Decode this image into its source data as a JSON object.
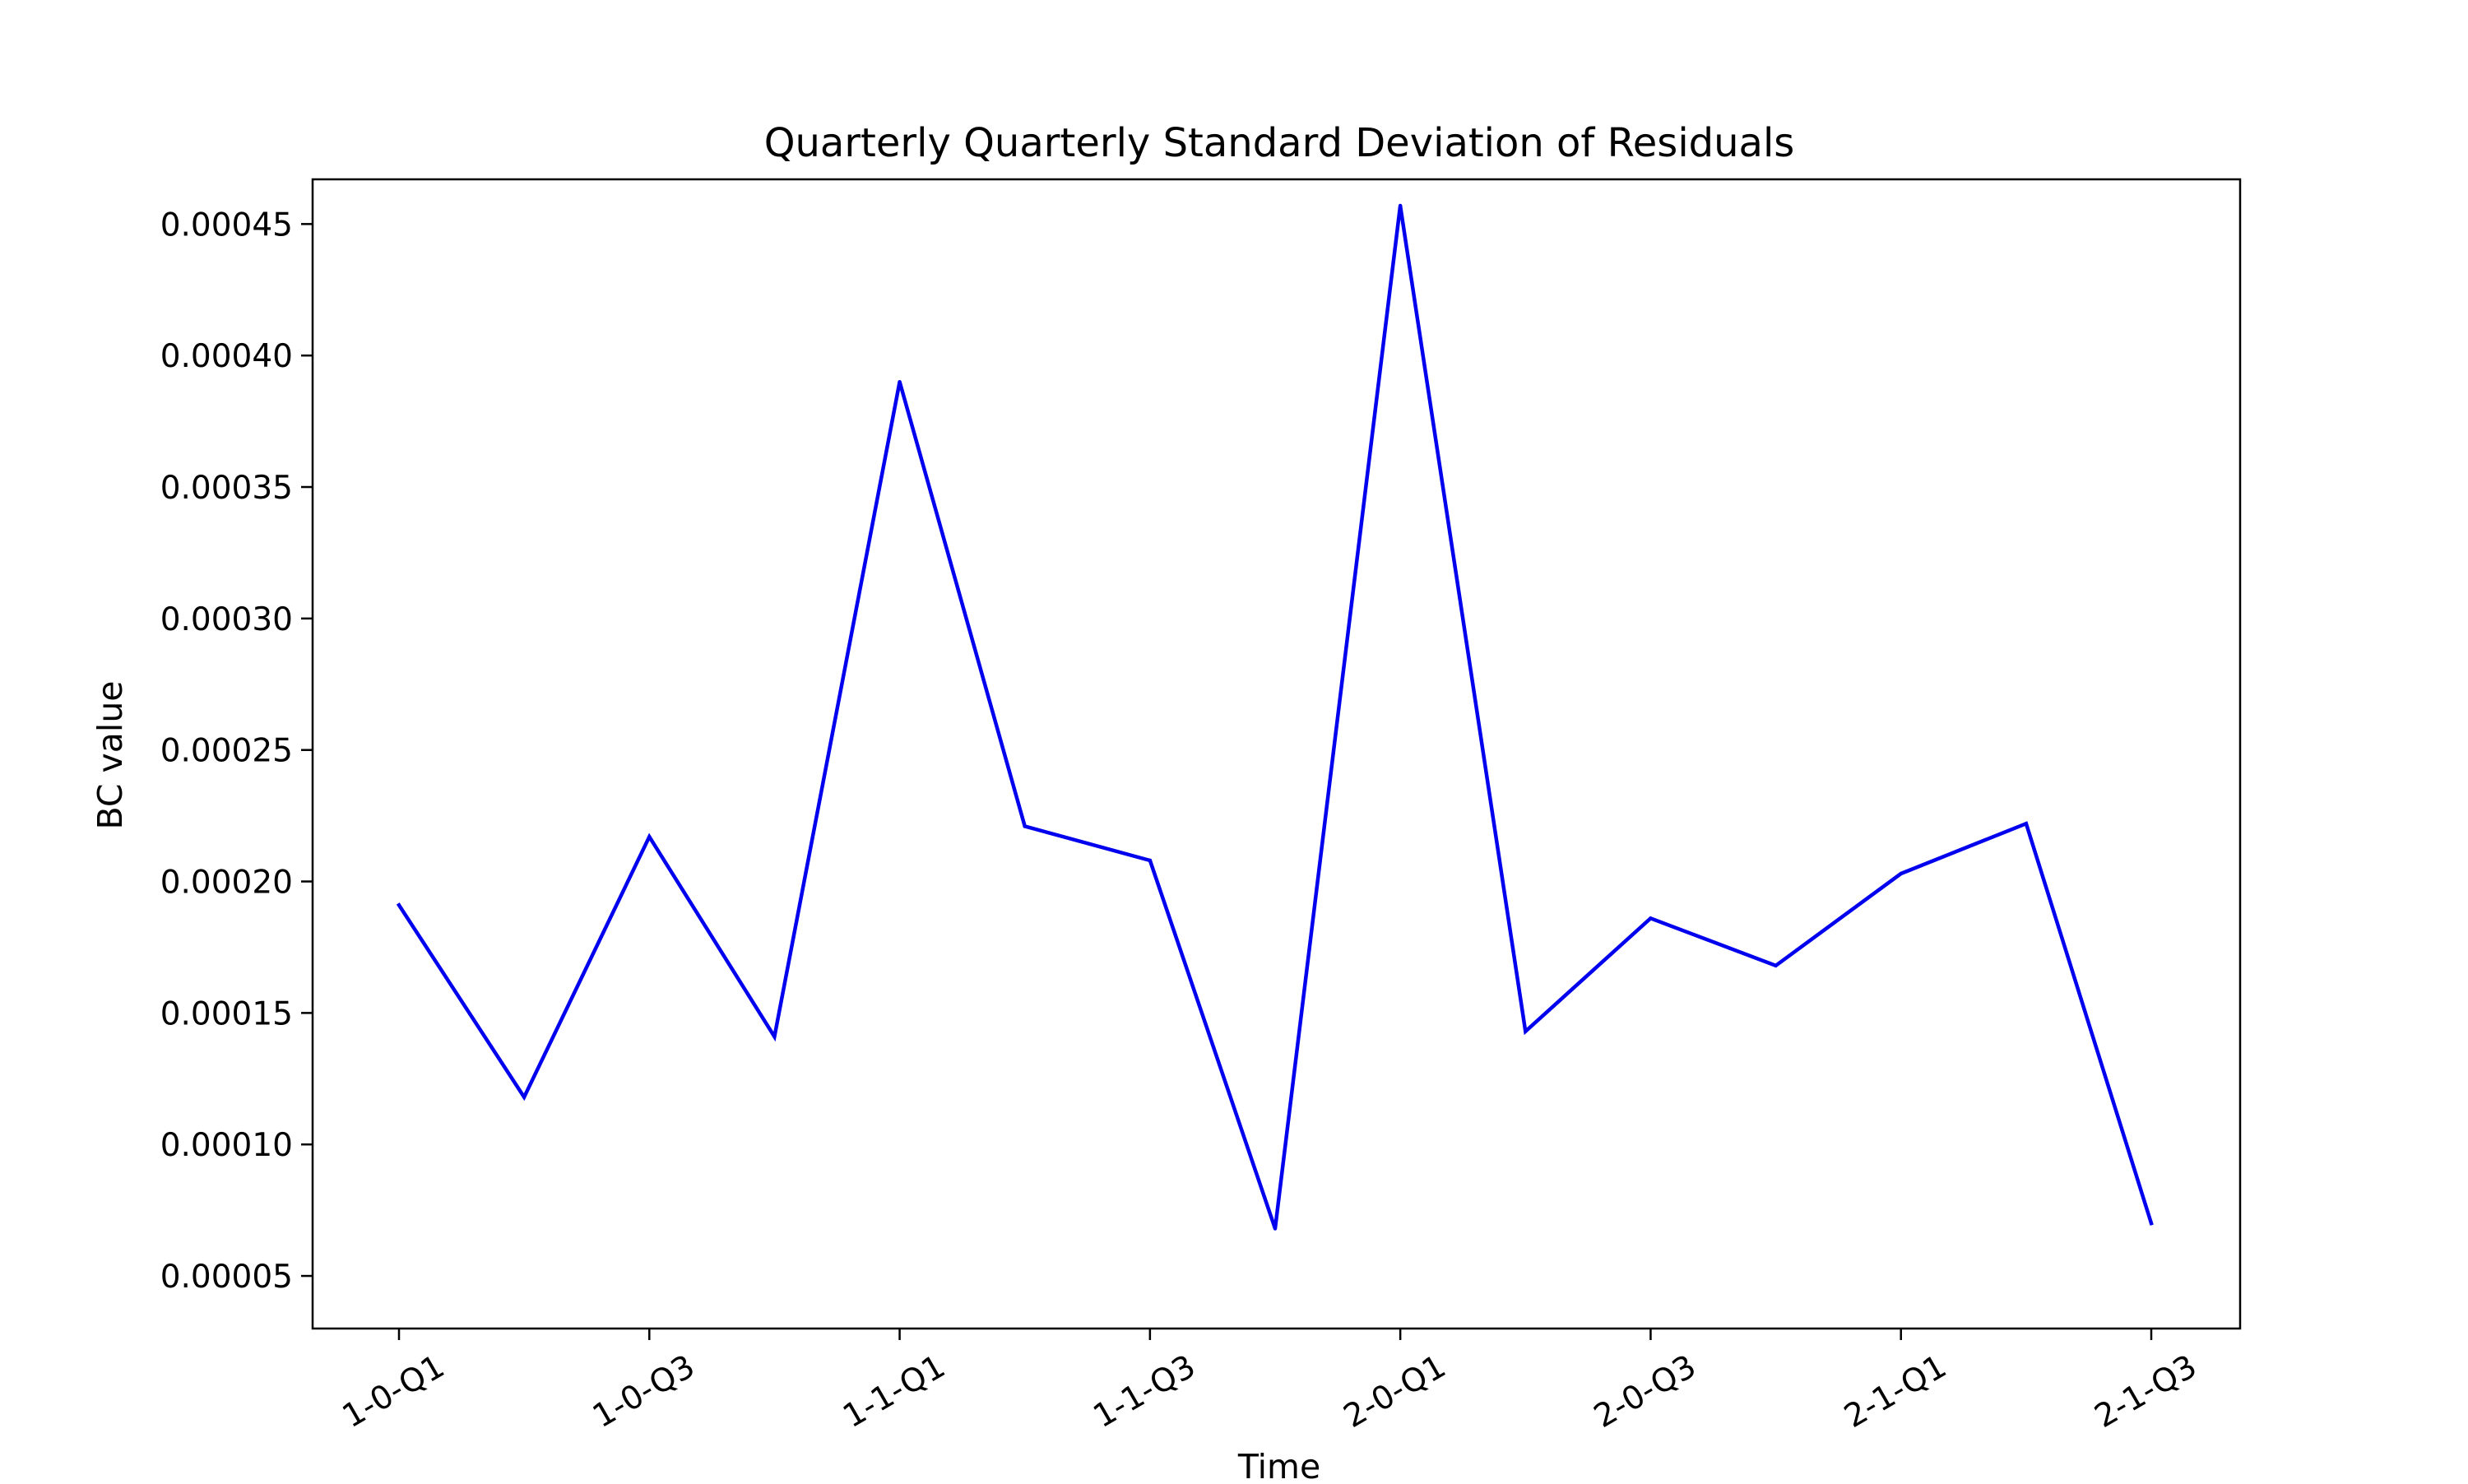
{
  "chart_data": {
    "type": "line",
    "title": "Quarterly Quarterly Standard Deviation of Residuals",
    "xlabel": "Time",
    "ylabel": "BC value",
    "x_tick_labels": [
      "1-0-Q1",
      "1-0-Q3",
      "1-1-Q1",
      "1-1-Q3",
      "2-0-Q1",
      "2-0-Q3",
      "2-1-Q1",
      "2-1-Q3"
    ],
    "y_tick_labels": [
      "0.00005",
      "0.00010",
      "0.00015",
      "0.00020",
      "0.00025",
      "0.00030",
      "0.00035",
      "0.00040",
      "0.00045"
    ],
    "y_ticks": [
      5e-05,
      0.0001,
      0.00015,
      0.0002,
      0.00025,
      0.0003,
      0.00035,
      0.0004,
      0.00045
    ],
    "ylim": [
      3e-05,
      0.000467
    ],
    "grid": false,
    "legend": false,
    "line_color": "#0000ee",
    "series": [
      {
        "values": [
          0.000191,
          0.000118,
          0.000217,
          0.000141,
          0.00039,
          0.000221,
          0.000208,
          6.8e-05,
          0.000457,
          0.000143,
          0.000186,
          0.000168,
          0.000203,
          0.000222,
          7e-05
        ]
      }
    ]
  }
}
